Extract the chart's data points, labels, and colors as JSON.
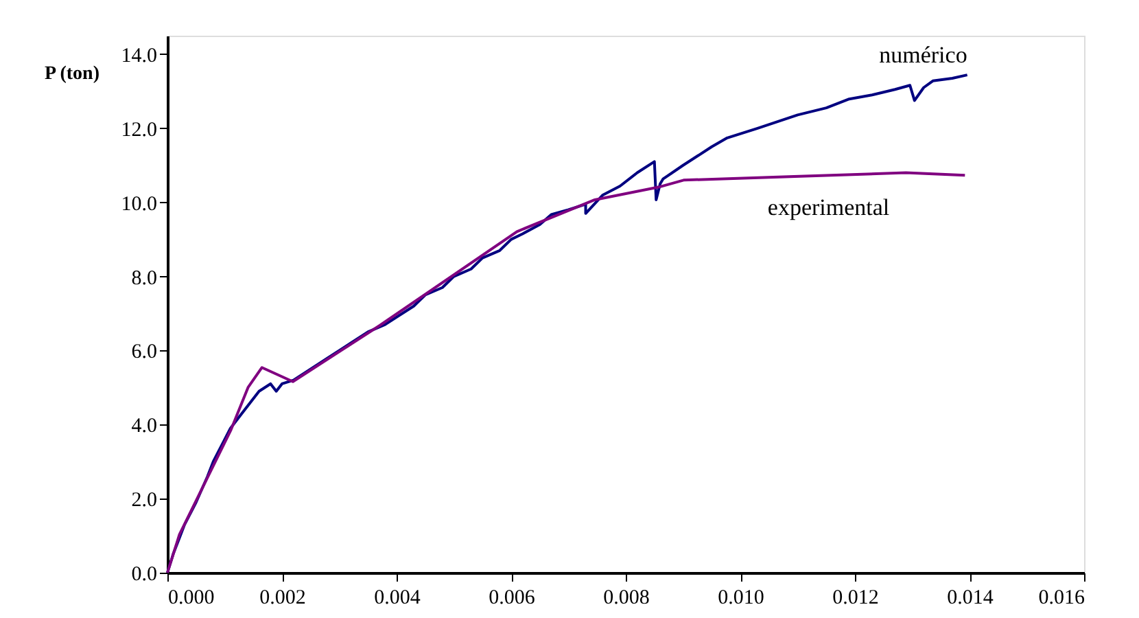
{
  "chart_data": {
    "type": "line",
    "ylabel": "P (ton)",
    "xlim": [
      0,
      0.016
    ],
    "xticks": [
      {
        "value": 0,
        "label": "0.000"
      },
      {
        "value": 0.002,
        "label": "0.002"
      },
      {
        "value": 0.004,
        "label": "0.004"
      },
      {
        "value": 0.006,
        "label": "0.006"
      },
      {
        "value": 0.008,
        "label": "0.008"
      },
      {
        "value": 0.01,
        "label": "0.010"
      },
      {
        "value": 0.012,
        "label": "0.012"
      },
      {
        "value": 0.014,
        "label": "0.014"
      },
      {
        "value": 0.016,
        "label": "0.016"
      }
    ],
    "ylim": [
      0,
      14.5
    ],
    "yticks": [
      {
        "value": 0,
        "label": "0.0"
      },
      {
        "value": 2,
        "label": "2.0"
      },
      {
        "value": 4,
        "label": "4.0"
      },
      {
        "value": 6,
        "label": "6.0"
      },
      {
        "value": 8,
        "label": "8.0"
      },
      {
        "value": 10,
        "label": "10.0"
      },
      {
        "value": 12,
        "label": "12.0"
      },
      {
        "value": 14,
        "label": "14.0"
      }
    ],
    "grid": false,
    "legend": false,
    "marker": "none",
    "line_style": "solid",
    "series": [
      {
        "name": "numérico",
        "color": "#000080",
        "x": [
          0,
          0.0001,
          0.0002,
          0.0003,
          0.0005,
          0.0007,
          0.0008,
          0.001,
          0.0011,
          0.0013,
          0.0014,
          0.0016,
          0.0018,
          0.0019,
          0.002,
          0.0022,
          0.0025,
          0.0028,
          0.003,
          0.0033,
          0.0035,
          0.0038,
          0.004,
          0.0043,
          0.0045,
          0.0048,
          0.005,
          0.0053,
          0.0055,
          0.0058,
          0.006,
          0.0062,
          0.0065,
          0.0067,
          0.007,
          0.0073,
          0.0073,
          0.0076,
          0.0079,
          0.0082,
          0.0085,
          0.00853,
          0.0086,
          0.00865,
          0.009,
          0.00925,
          0.0095,
          0.00977,
          0.0103,
          0.011,
          0.0115,
          0.0119,
          0.0123,
          0.0127,
          0.01296,
          0.01304,
          0.0132,
          0.01336,
          0.0137,
          0.01396
        ],
        "values": [
          0,
          0.5,
          0.9,
          1.3,
          1.9,
          2.6,
          3.0,
          3.6,
          3.9,
          4.3,
          4.5,
          4.9,
          5.1,
          4.9,
          5.1,
          5.2,
          5.5,
          5.8,
          6.0,
          6.3,
          6.5,
          6.7,
          6.9,
          7.2,
          7.5,
          7.7,
          8.0,
          8.2,
          8.5,
          8.7,
          9.0,
          9.15,
          9.4,
          9.67,
          9.8,
          9.95,
          9.7,
          10.2,
          10.44,
          10.8,
          11.1,
          10.07,
          10.5,
          10.63,
          11.0,
          11.25,
          11.5,
          11.74,
          12.0,
          12.36,
          12.55,
          12.79,
          12.9,
          13.05,
          13.16,
          12.75,
          13.1,
          13.28,
          13.35,
          13.44
        ]
      },
      {
        "name": "experimental",
        "color": "#800080",
        "x": [
          0,
          0.00021,
          0.00111,
          0.00141,
          0.00165,
          0.00219,
          0.00371,
          0.0061,
          0.00746,
          0.00857,
          0.00901,
          0.01289,
          0.01392
        ],
        "values": [
          0,
          1.03,
          3.86,
          5.01,
          5.54,
          5.16,
          6.68,
          9.21,
          10.07,
          10.41,
          10.6,
          10.8,
          10.73
        ]
      }
    ]
  }
}
